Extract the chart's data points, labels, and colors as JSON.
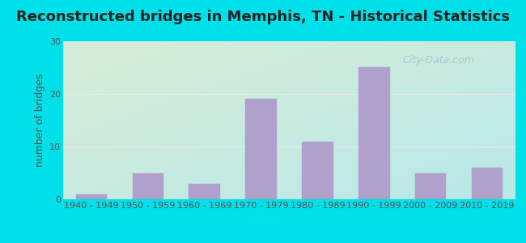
{
  "title": "Reconstructed bridges in Memphis, TN - Historical Statistics",
  "ylabel": "number of bridges",
  "categories": [
    "1940 - 1949",
    "1950 - 1959",
    "1960 - 1969",
    "1970 - 1979",
    "1980 - 1989",
    "1990 - 1999",
    "2000 - 2009",
    "2010 - 2019"
  ],
  "values": [
    1,
    5,
    3,
    19,
    11,
    25,
    5,
    6
  ],
  "bar_color": "#b0a0cc",
  "bar_edge_color": "#b0a0cc",
  "ylim": [
    0,
    30
  ],
  "yticks": [
    0,
    10,
    20,
    30
  ],
  "background_outer": "#00e0e8",
  "background_plot_topleft": "#d8edd8",
  "background_plot_bottomright": "#b8e8e8",
  "grid_color": "#e8e8e8",
  "title_fontsize": 13,
  "axis_label_fontsize": 9,
  "tick_fontsize": 8,
  "watermark_text": "City-Data.com",
  "title_color": "#222222",
  "axis_label_color": "#555555",
  "tick_color": "#555555",
  "bar_width": 0.55
}
